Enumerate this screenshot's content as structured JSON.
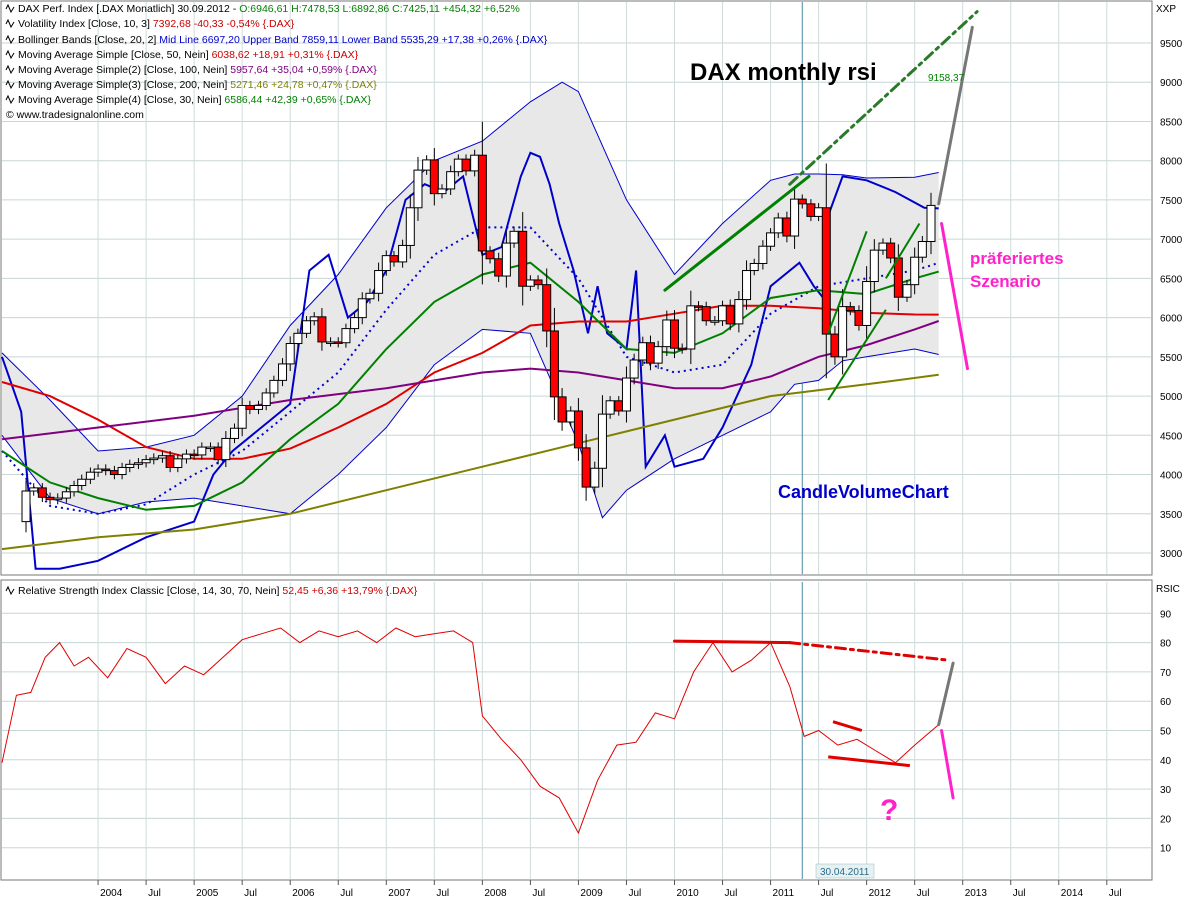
{
  "header": {
    "lines": [
      {
        "pre": "DAX Perf. Index [.DAX  Monatlich] 30.09.2012 - ",
        "val": "O:6946,61 H:7478,53 L:6892,86 C:7425,11 +454,32 +6,52%",
        "val_color": "#008000"
      },
      {
        "pre": "Volatility Index [Close, 10, 3] ",
        "val": "7392,68 -40,33 -0,54% {.DAX}",
        "val_color": "#cc0000"
      },
      {
        "pre": "Bollinger Bands [Close, 20, 2] ",
        "val": "Mid Line 6697,20 Upper Band 7859,11 Lower Band 5535,29 +17,38 +0,26% {.DAX}",
        "val_color": "#0000cc"
      },
      {
        "pre": "Moving Average Simple [Close, 50, Nein] ",
        "val": "6038,62 +18,91 +0,31% {.DAX}",
        "val_color": "#cc0000"
      },
      {
        "pre": "Moving Average Simple(2) [Close, 100, Nein] ",
        "val": "5957,64 +35,04 +0,59% {.DAX}",
        "val_color": "#800080"
      },
      {
        "pre": "Moving Average Simple(3) [Close, 200, Nein] ",
        "val": "5271,46 +24,78 +0,47% {.DAX}",
        "val_color": "#808000"
      },
      {
        "pre": "Moving Average Simple(4) [Close, 30, Nein] ",
        "val": "6586,44 +42,39 +0,65% {.DAX}",
        "val_color": "#008000"
      }
    ],
    "copyright": "© www.tradesignalonline.com"
  },
  "annotations": {
    "title": "DAX monthly rsi",
    "scenario_line1": "präferiertes",
    "scenario_line2": "Szenario",
    "candle_volume": "CandleVolumeChart",
    "target_value": "9158,37",
    "question": "?"
  },
  "rsi_header": {
    "pre": "Relative Strength Index Classic [Close, 14, 30, 70, Nein] ",
    "val": "52,45 +6,36 +13,79% {.DAX}",
    "val_color": "#cc0000"
  },
  "price_axis": {
    "label": "XXP",
    "ticks": [
      3000,
      3500,
      4000,
      4500,
      5000,
      5500,
      6000,
      6500,
      7000,
      7500,
      8000,
      8500,
      9000,
      9500
    ]
  },
  "rsi_axis": {
    "label": "RSIC",
    "ticks": [
      10,
      20,
      30,
      40,
      50,
      60,
      70,
      80,
      90
    ]
  },
  "time_axis": {
    "labels": [
      {
        "t": 2004.0,
        "text": "2004"
      },
      {
        "t": 2004.5,
        "text": "Jul"
      },
      {
        "t": 2005.0,
        "text": "2005"
      },
      {
        "t": 2005.5,
        "text": "Jul"
      },
      {
        "t": 2006.0,
        "text": "2006"
      },
      {
        "t": 2006.5,
        "text": "Jul"
      },
      {
        "t": 2007.0,
        "text": "2007"
      },
      {
        "t": 2007.5,
        "text": "Jul"
      },
      {
        "t": 2008.0,
        "text": "2008"
      },
      {
        "t": 2008.5,
        "text": "Jul"
      },
      {
        "t": 2009.0,
        "text": "2009"
      },
      {
        "t": 2009.5,
        "text": "Jul"
      },
      {
        "t": 2010.0,
        "text": "2010"
      },
      {
        "t": 2010.5,
        "text": "Jul"
      },
      {
        "t": 2011.0,
        "text": "2011"
      },
      {
        "t": 2011.5,
        "text": "Jul"
      },
      {
        "t": 2012.0,
        "text": "2012"
      },
      {
        "t": 2012.5,
        "text": "Jul"
      },
      {
        "t": 2013.0,
        "text": "2013"
      },
      {
        "t": 2013.5,
        "text": "Jul"
      },
      {
        "t": 2014.0,
        "text": "2014"
      },
      {
        "t": 2014.5,
        "text": "Jul"
      }
    ],
    "cursor_date": "30.04.2011"
  },
  "chart_data": {
    "type": "line",
    "title": "DAX monthly rsi",
    "price_ylim": [
      2700,
      9900
    ],
    "rsi_ylim": [
      0,
      100
    ],
    "candles": {
      "t": [
        2003.25,
        2003.33,
        2003.42,
        2003.5,
        2003.58,
        2003.67,
        2003.75,
        2003.83,
        2003.92,
        2004.0,
        2004.08,
        2004.17,
        2004.25,
        2004.33,
        2004.42,
        2004.5,
        2004.58,
        2004.67,
        2004.75,
        2004.83,
        2004.92,
        2005.0,
        2005.08,
        2005.17,
        2005.25,
        2005.33,
        2005.42,
        2005.5,
        2005.58,
        2005.67,
        2005.75,
        2005.83,
        2005.92,
        2006.0,
        2006.08,
        2006.17,
        2006.25,
        2006.33,
        2006.42,
        2006.5,
        2006.58,
        2006.67,
        2006.75,
        2006.83,
        2006.92,
        2007.0,
        2007.08,
        2007.17,
        2007.25,
        2007.33,
        2007.42,
        2007.5,
        2007.58,
        2007.67,
        2007.75,
        2007.83,
        2007.92,
        2008.0,
        2008.08,
        2008.17,
        2008.25,
        2008.33,
        2008.42,
        2008.5,
        2008.58,
        2008.67,
        2008.75,
        2008.83,
        2008.92,
        2009.0,
        2009.08,
        2009.17,
        2009.25,
        2009.33,
        2009.42,
        2009.5,
        2009.58,
        2009.67,
        2009.75,
        2009.83,
        2009.92,
        2010.0,
        2010.08,
        2010.17,
        2010.25,
        2010.33,
        2010.42,
        2010.5,
        2010.58,
        2010.67,
        2010.75,
        2010.83,
        2010.92,
        2011.0,
        2011.08,
        2011.17,
        2011.25,
        2011.33,
        2011.42,
        2011.5,
        2011.58,
        2011.67,
        2011.75,
        2011.83,
        2011.92,
        2012.0,
        2012.08,
        2012.17,
        2012.25,
        2012.33,
        2012.42,
        2012.5,
        2012.58,
        2012.67
      ],
      "close": [
        3790,
        3830,
        3710,
        3680,
        3700,
        3780,
        3860,
        3940,
        4030,
        4070,
        4050,
        4000,
        4090,
        4130,
        4150,
        4190,
        4210,
        4240,
        4090,
        4200,
        4260,
        4250,
        4350,
        4350,
        4190,
        4460,
        4590,
        4880,
        4830,
        4880,
        5040,
        5200,
        5410,
        5670,
        5800,
        5960,
        6010,
        5690,
        5690,
        5680,
        5860,
        6000,
        6240,
        6310,
        6600,
        6790,
        6710,
        6920,
        7400,
        7880,
        8010,
        7580,
        7640,
        7860,
        8020,
        7870,
        8070,
        6850,
        6750,
        6530,
        6950,
        7100,
        6400,
        6480,
        6420,
        5830,
        4990,
        4670,
        4810,
        4340,
        3840,
        4080,
        4770,
        4940,
        4810,
        5230,
        5460,
        5680,
        5420,
        5630,
        5970,
        5610,
        5600,
        6150,
        6140,
        5960,
        5960,
        6150,
        5920,
        6230,
        6600,
        6690,
        6910,
        7080,
        7270,
        7040,
        7510,
        7450,
        7290,
        7400,
        5790,
        5500,
        6140,
        6090,
        5900,
        6460,
        6860,
        6950,
        6760,
        6260,
        6420,
        6770,
        6970,
        7430
      ],
      "open": [
        3400,
        3790,
        3830,
        3710,
        3680,
        3700,
        3780,
        3860,
        3940,
        4030,
        4070,
        4050,
        4000,
        4090,
        4130,
        4150,
        4190,
        4210,
        4240,
        4090,
        4200,
        4260,
        4250,
        4350,
        4350,
        4190,
        4460,
        4590,
        4880,
        4830,
        4880,
        5040,
        5200,
        5410,
        5670,
        5800,
        5960,
        6010,
        5690,
        5690,
        5680,
        5860,
        6000,
        6240,
        6310,
        6600,
        6790,
        6710,
        6920,
        7400,
        7880,
        8010,
        7580,
        7640,
        7860,
        8020,
        7870,
        8070,
        6850,
        6750,
        6530,
        6950,
        7100,
        6400,
        6480,
        6420,
        5830,
        4990,
        4670,
        4810,
        4340,
        3840,
        4080,
        4770,
        4940,
        4810,
        5230,
        5460,
        5680,
        5420,
        5630,
        5970,
        5610,
        5600,
        6150,
        6140,
        5960,
        5960,
        6150,
        5920,
        6230,
        6600,
        6690,
        6910,
        7080,
        7270,
        7040,
        7510,
        7450,
        7290,
        7400,
        5790,
        5500,
        6140,
        6090,
        5900,
        6460,
        6860,
        6950,
        6760,
        6260,
        6420,
        6770,
        6970
      ]
    },
    "series": [
      {
        "name": "Bollinger Bands Upper Band",
        "color": "#0000cc",
        "t": [
          2003.0,
          2003.5,
          2004.0,
          2004.5,
          2005.0,
          2005.5,
          2006.0,
          2006.5,
          2007.0,
          2007.5,
          2008.0,
          2008.5,
          2008.83,
          2009.0,
          2009.5,
          2010.0,
          2010.5,
          2011.0,
          2011.25,
          2011.5,
          2011.75,
          2012.0,
          2012.5,
          2012.75
        ],
        "y": [
          5550,
          4950,
          4300,
          4350,
          4500,
          5000,
          5900,
          6550,
          7400,
          8000,
          8250,
          8750,
          9000,
          8880,
          7500,
          6550,
          7200,
          7750,
          7830,
          7830,
          7820,
          7780,
          7790,
          7850
        ]
      },
      {
        "name": "Bollinger Bands Lower Band",
        "color": "#0000cc",
        "t": [
          2003.0,
          2003.5,
          2004.0,
          2004.5,
          2005.0,
          2005.5,
          2006.0,
          2006.5,
          2007.0,
          2007.5,
          2008.0,
          2008.5,
          2009.0,
          2009.25,
          2009.5,
          2010.0,
          2010.5,
          2011.0,
          2011.25,
          2011.5,
          2011.75,
          2012.0,
          2012.5,
          2012.75
        ],
        "y": [
          4500,
          3700,
          3500,
          3650,
          3700,
          3600,
          3500,
          4000,
          4600,
          5400,
          5850,
          5800,
          4400,
          3450,
          3800,
          4200,
          4500,
          4800,
          5150,
          5200,
          5450,
          5500,
          5600,
          5530
        ]
      },
      {
        "name": "Bollinger Bands Mid Line",
        "color": "#0000cc",
        "dashed": true,
        "t": [
          2003.0,
          2003.5,
          2004.0,
          2004.5,
          2005.0,
          2005.5,
          2006.0,
          2006.5,
          2007.0,
          2007.5,
          2008.0,
          2008.5,
          2009.0,
          2009.5,
          2010.0,
          2010.5,
          2011.0,
          2011.5,
          2012.0,
          2012.5,
          2012.75
        ],
        "y": [
          4300,
          3600,
          3500,
          3620,
          4000,
          4300,
          4800,
          5300,
          6100,
          6800,
          7150,
          7150,
          6500,
          5500,
          5300,
          5400,
          6050,
          6400,
          6500,
          6600,
          6697
        ]
      },
      {
        "name": "Volatility Index",
        "color": "#0000cc",
        "t": [
          2003.0,
          2003.2,
          2003.35,
          2003.6,
          2004.0,
          2004.5,
          2005.0,
          2005.2,
          2005.4,
          2005.6,
          2005.8,
          2006.0,
          2006.2,
          2006.4,
          2006.6,
          2006.8,
          2007.0,
          2007.2,
          2007.4,
          2007.6,
          2007.8,
          2008.0,
          2008.2,
          2008.4,
          2008.5,
          2008.6,
          2008.7,
          2008.8,
          2008.95,
          2009.1,
          2009.2,
          2009.3,
          2009.5,
          2009.6,
          2009.7,
          2009.9,
          2010.0,
          2010.3,
          2010.5,
          2010.8,
          2011.0,
          2011.3,
          2011.45,
          2011.55,
          2011.6,
          2011.75,
          2012.0,
          2012.3,
          2012.6,
          2012.75
        ],
        "y": [
          5500,
          4800,
          2800,
          2800,
          2900,
          3200,
          3400,
          4000,
          4300,
          4500,
          4700,
          4900,
          6600,
          6800,
          6000,
          6200,
          6600,
          7500,
          7700,
          7600,
          7800,
          6800,
          6900,
          7800,
          8100,
          8050,
          7700,
          7200,
          6600,
          5800,
          6400,
          5800,
          5600,
          6600,
          4100,
          4500,
          4100,
          4200,
          4600,
          5400,
          6400,
          6700,
          6400,
          6250,
          7300,
          7800,
          7750,
          7600,
          7400,
          7392
        ]
      },
      {
        "name": "Moving Average Simple",
        "color": "#e00000",
        "t": [
          2003.0,
          2003.5,
          2004.0,
          2004.5,
          2005.0,
          2005.5,
          2006.0,
          2006.5,
          2007.0,
          2007.5,
          2008.0,
          2008.5,
          2009.0,
          2009.5,
          2010.0,
          2010.5,
          2011.0,
          2011.5,
          2012.0,
          2012.5,
          2012.75
        ],
        "y": [
          5180,
          5000,
          4700,
          4350,
          4200,
          4200,
          4330,
          4600,
          4900,
          5300,
          5550,
          5900,
          5950,
          5950,
          6050,
          6150,
          6150,
          6120,
          6060,
          6040,
          6038
        ]
      },
      {
        "name": "Moving Average Simple(2)",
        "color": "#800080",
        "t": [
          2003.0,
          2004.0,
          2005.0,
          2006.0,
          2007.0,
          2007.5,
          2008.0,
          2008.5,
          2009.0,
          2009.5,
          2010.0,
          2010.5,
          2011.0,
          2011.5,
          2012.0,
          2012.5,
          2012.75
        ],
        "y": [
          4450,
          4600,
          4750,
          4950,
          5100,
          5200,
          5300,
          5350,
          5300,
          5200,
          5100,
          5100,
          5250,
          5500,
          5650,
          5850,
          5957
        ]
      },
      {
        "name": "Moving Average Simple(3)",
        "color": "#808000",
        "t": [
          2003.0,
          2004.0,
          2005.0,
          2006.0,
          2007.0,
          2008.0,
          2009.0,
          2010.0,
          2011.0,
          2012.0,
          2012.75
        ],
        "y": [
          3050,
          3200,
          3300,
          3500,
          3800,
          4100,
          4400,
          4700,
          5000,
          5150,
          5271
        ]
      },
      {
        "name": "Moving Average Simple(4)",
        "color": "#008000",
        "t": [
          2003.0,
          2003.5,
          2004.0,
          2004.5,
          2005.0,
          2005.5,
          2006.0,
          2006.5,
          2007.0,
          2007.5,
          2008.0,
          2008.5,
          2009.0,
          2009.5,
          2010.0,
          2010.5,
          2011.0,
          2011.5,
          2012.0,
          2012.5,
          2012.75
        ],
        "y": [
          4300,
          3900,
          3700,
          3550,
          3600,
          3900,
          4450,
          4900,
          5600,
          6200,
          6550,
          6700,
          6200,
          5600,
          5550,
          5800,
          6250,
          6350,
          6300,
          6500,
          6586
        ]
      },
      {
        "name": "Relative Strength Index Classic",
        "color": "#e00000",
        "panel": "rsi",
        "t": [
          2003.0,
          2003.15,
          2003.3,
          2003.45,
          2003.6,
          2003.75,
          2003.9,
          2004.1,
          2004.3,
          2004.5,
          2004.7,
          2004.9,
          2005.1,
          2005.3,
          2005.5,
          2005.7,
          2005.9,
          2006.1,
          2006.3,
          2006.5,
          2006.7,
          2006.9,
          2007.1,
          2007.3,
          2007.5,
          2007.7,
          2007.9,
          2008.0,
          2008.2,
          2008.4,
          2008.6,
          2008.8,
          2009.0,
          2009.2,
          2009.4,
          2009.6,
          2009.8,
          2010.0,
          2010.2,
          2010.4,
          2010.6,
          2010.8,
          2011.0,
          2011.2,
          2011.35,
          2011.5,
          2011.7,
          2011.9,
          2012.1,
          2012.3,
          2012.5,
          2012.75
        ],
        "y": [
          39,
          62,
          63,
          75,
          80,
          72,
          75,
          68,
          78,
          75,
          66,
          72,
          69,
          75,
          81,
          83,
          85,
          80,
          84,
          82,
          84,
          80,
          85,
          82,
          83,
          84,
          80,
          55,
          47,
          40,
          31,
          27,
          15,
          33,
          45,
          46,
          56,
          54,
          70,
          80,
          70,
          74,
          80,
          65,
          48,
          50,
          45,
          47,
          43,
          39,
          45,
          52
        ]
      }
    ],
    "trendlines": [
      {
        "label": "price support channel",
        "color": "#008000",
        "t": [
          2009.9,
          2011.4
        ],
        "y": [
          6350,
          7800
        ]
      },
      {
        "label": "price target projection",
        "color": "#2a7a2a",
        "dashed": true,
        "t": [
          2011.2,
          2013.15
        ],
        "y": [
          7700,
          9900
        ]
      },
      {
        "label": "price projection",
        "color": "#777777",
        "t": [
          2012.75,
          2013.1
        ],
        "y": [
          7450,
          9700
        ]
      },
      {
        "label": "preferred scenario",
        "color": "#ff22cc",
        "t": [
          2012.78,
          2013.05
        ],
        "y": [
          7200,
          5350
        ]
      },
      {
        "label": "rsi resistance",
        "color": "#e00000",
        "panel": "rsi",
        "t": [
          2010.0,
          2011.2
        ],
        "y": [
          80.5,
          80
        ]
      },
      {
        "label": "rsi resistance extension",
        "color": "#e00000",
        "panel": "rsi",
        "dashed": true,
        "t": [
          2011.2,
          2012.85
        ],
        "y": [
          80,
          74
        ]
      },
      {
        "label": "rsi projection",
        "color": "#777777",
        "panel": "rsi",
        "t": [
          2012.75,
          2012.9
        ],
        "y": [
          52,
          73
        ]
      },
      {
        "label": "rsi scenario",
        "color": "#ff22cc",
        "panel": "rsi",
        "t": [
          2012.78,
          2012.9
        ],
        "y": [
          50,
          27
        ]
      }
    ]
  }
}
